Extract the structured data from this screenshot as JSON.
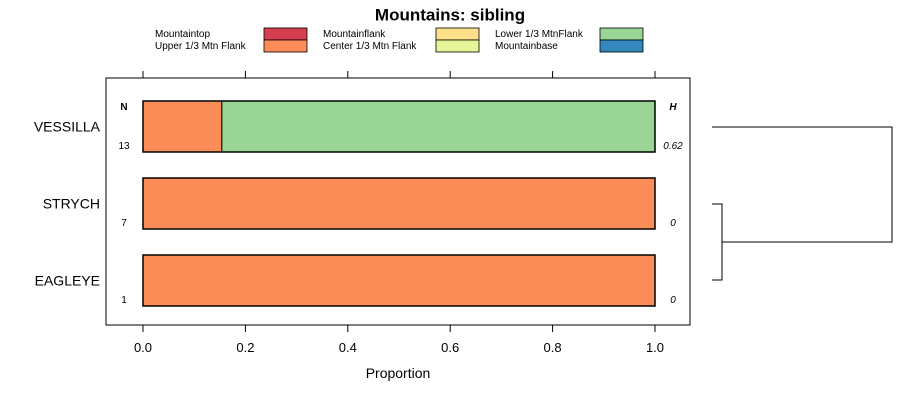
{
  "chart_data": {
    "type": "bar",
    "stacked": true,
    "orientation": "horizontal",
    "title": "Mountains: sibling",
    "xlabel": "Proportion",
    "ylabel": "",
    "xlim": [
      0,
      1
    ],
    "xticks": [
      "0.0",
      "0.2",
      "0.4",
      "0.6",
      "0.8",
      "1.0"
    ],
    "legend_position": "top",
    "categories": [
      "VESSILLA",
      "STRYCH",
      "EAGLEYE"
    ],
    "series": [
      {
        "name": "Mountaintop",
        "color": "#d53e4f",
        "values": [
          0,
          0,
          0
        ]
      },
      {
        "name": "Upper 1/3 Mtn Flank",
        "color": "#fc8d59",
        "values": [
          0.154,
          1.0,
          1.0
        ]
      },
      {
        "name": "Mountainflank",
        "color": "#fee08b",
        "values": [
          0,
          0,
          0
        ]
      },
      {
        "name": "Center 1/3 Mtn Flank",
        "color": "#e6f598",
        "values": [
          0,
          0,
          0
        ]
      },
      {
        "name": "Lower 1/3 MtnFlank",
        "color": "#99d594",
        "values": [
          0.846,
          0,
          0
        ]
      },
      {
        "name": "Mountainbase",
        "color": "#3288bd",
        "values": [
          0,
          0,
          0
        ]
      }
    ],
    "n_header": "N",
    "h_header": "H",
    "n_values": [
      "13",
      "7",
      "1"
    ],
    "h_values": [
      "0.62",
      "0",
      "0"
    ],
    "dendrogram": {
      "merges": [
        [
          "STRYCH",
          "EAGLEYE"
        ],
        [
          "VESSILLA",
          "STRYCH+EAGLEYE"
        ]
      ]
    }
  }
}
